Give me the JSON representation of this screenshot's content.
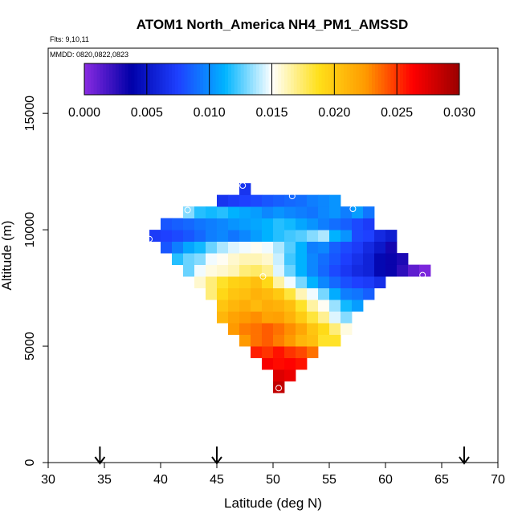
{
  "chart_data": {
    "type": "heatmap",
    "title": "ATOM1 North_America NH4_PM1_AMSSD",
    "subtitle_flights": "Flts: 9,10,11",
    "subtitle_dates": "MMDD: 0820,0822,0823",
    "xlabel": "Latitude (deg N)",
    "ylabel": "Altitude (m)",
    "xlim": [
      30,
      70
    ],
    "ylim": [
      0,
      17800
    ],
    "xticks": [
      "30",
      "35",
      "40",
      "45",
      "50",
      "55",
      "60",
      "65",
      "70"
    ],
    "yticks": [
      "0",
      "5000",
      "10000",
      "15000"
    ],
    "colorbar": {
      "min": 0.0,
      "max": 0.03,
      "ticks": [
        "0.000",
        "0.005",
        "0.010",
        "0.015",
        "0.020",
        "0.025",
        "0.030"
      ],
      "stops": [
        "#8a2be2",
        "#0000a8",
        "#1e40ff",
        "#00b4ff",
        "#ffffff",
        "#ffe01a",
        "#ff9a00",
        "#ff0000",
        "#9a0000"
      ]
    },
    "cell_size": {
      "lat": 1,
      "alt": 500
    },
    "rows": [
      {
        "alt": 3250,
        "lat0": 50,
        "values": [
          0.0285
        ]
      },
      {
        "alt": 3750,
        "lat0": 50,
        "values": [
          0.0275,
          0.027
        ]
      },
      {
        "alt": 4250,
        "lat0": 49,
        "values": [
          0.0265,
          0.026,
          0.0262,
          0.0258
        ]
      },
      {
        "alt": 4750,
        "lat0": 48,
        "values": [
          0.0255,
          0.025,
          0.0258,
          0.025,
          0.0245,
          0.0235
        ]
      },
      {
        "alt": 5250,
        "lat0": 47,
        "values": [
          0.0225,
          0.0235,
          0.024,
          0.0232,
          0.0225,
          0.021,
          0.0205,
          0.0185,
          0.0185
        ]
      },
      {
        "alt": 5750,
        "lat0": 46,
        "values": [
          0.0225,
          0.0232,
          0.0235,
          0.024,
          0.0235,
          0.0228,
          0.0218,
          0.0202,
          0.019,
          0.0172,
          0.0155
        ]
      },
      {
        "alt": 6250,
        "lat0": 45,
        "values": [
          0.021,
          0.022,
          0.0225,
          0.0228,
          0.022,
          0.0222,
          0.0212,
          0.0198,
          0.0182,
          0.0168,
          0.0145,
          0.0132
        ]
      },
      {
        "alt": 6750,
        "lat0": 45,
        "values": [
          0.0202,
          0.021,
          0.0215,
          0.0208,
          0.0215,
          0.0212,
          0.0205,
          0.0185,
          0.0165,
          0.0152,
          0.0135,
          0.0115,
          0.0105
        ]
      },
      {
        "alt": 7250,
        "lat0": 44,
        "values": [
          0.0172,
          0.0192,
          0.0202,
          0.0205,
          0.0212,
          0.0208,
          0.02,
          0.0182,
          0.0162,
          0.0148,
          0.013,
          0.011,
          0.0095,
          0.0092,
          0.0085
        ]
      },
      {
        "alt": 7750,
        "lat0": 43,
        "values": [
          0.0158,
          0.0172,
          0.0185,
          0.0195,
          0.0198,
          0.0205,
          0.0192,
          0.0165,
          0.0148,
          0.013,
          0.0112,
          0.0098,
          0.0088,
          0.008,
          0.0075,
          0.0072,
          0.0065
        ]
      },
      {
        "alt": 8250,
        "lat0": 42,
        "values": [
          0.0128,
          0.0148,
          0.0155,
          0.0158,
          0.0162,
          0.0172,
          0.0175,
          0.0168,
          0.0145,
          0.0128,
          0.0112,
          0.0098,
          0.0088,
          0.0078,
          0.007,
          0.0062,
          0.0058,
          0.0042,
          0.0035,
          0.0025,
          0.0012,
          0.0004
        ]
      },
      {
        "alt": 8750,
        "lat0": 41,
        "values": [
          0.0118,
          0.0128,
          0.0132,
          0.0148,
          0.0152,
          0.0158,
          0.0162,
          0.0162,
          0.0158,
          0.0142,
          0.0122,
          0.0112,
          0.0098,
          0.009,
          0.0082,
          0.0074,
          0.0066,
          0.0058,
          0.0042,
          0.0035,
          0.003
        ]
      },
      {
        "alt": 9250,
        "lat0": 40,
        "values": [
          0.0082,
          0.0095,
          0.0108,
          0.0115,
          0.0128,
          0.0138,
          0.0145,
          0.0148,
          0.0152,
          0.0148,
          0.0138,
          0.0125,
          0.0112,
          0.0095,
          0.0098,
          0.0085,
          0.0078,
          0.0072,
          0.0062,
          0.0052,
          0.0032
        ]
      },
      {
        "alt": 9750,
        "lat0": 39,
        "values": [
          0.0072,
          0.0075,
          0.0078,
          0.0082,
          0.0088,
          0.0095,
          0.0098,
          0.0092,
          0.0098,
          0.0105,
          0.0112,
          0.0118,
          0.0122,
          0.0125,
          0.0132,
          0.0138,
          0.0112,
          0.0102,
          0.0078,
          0.0075,
          0.0062,
          0.0055
        ]
      },
      {
        "alt": 10250,
        "lat0": 40,
        "values": [
          0.0082,
          0.0085,
          0.0088,
          0.0092,
          0.0095,
          0.0098,
          0.0102,
          0.0105,
          0.0108,
          0.0112,
          0.0118,
          0.0115,
          0.0108,
          0.0102,
          0.0095,
          0.009,
          0.0085,
          0.0078,
          0.0072
        ]
      },
      {
        "alt": 10750,
        "lat0": 42,
        "values": [
          0.0132,
          0.0118,
          0.0115,
          0.0118,
          0.0112,
          0.0108,
          0.0105,
          0.0098,
          0.0102,
          0.0098,
          0.0095,
          0.0092,
          0.0098,
          0.0102,
          0.0095,
          0.0105,
          0.0092
        ]
      },
      {
        "alt": 11250,
        "lat0": 45,
        "values": [
          0.0068,
          0.0072,
          0.0075,
          0.0078,
          0.0082,
          0.0085,
          0.0088,
          0.009,
          0.0095,
          0.0098,
          0.0102
        ]
      },
      {
        "alt": 11750,
        "lat0": 47,
        "values": [
          0.0068
        ]
      }
    ],
    "sample_markers": [
      {
        "lat": 50.5,
        "alt": 3200
      },
      {
        "lat": 49.1,
        "alt": 8000
      },
      {
        "lat": 63.3,
        "alt": 8050
      },
      {
        "lat": 39.0,
        "alt": 9600
      },
      {
        "lat": 42.4,
        "alt": 10850
      },
      {
        "lat": 47.3,
        "alt": 11900
      },
      {
        "lat": 51.7,
        "alt": 11450
      },
      {
        "lat": 57.1,
        "alt": 10900
      }
    ],
    "arrow_markers": [
      34.6,
      45.0,
      67.0
    ]
  }
}
